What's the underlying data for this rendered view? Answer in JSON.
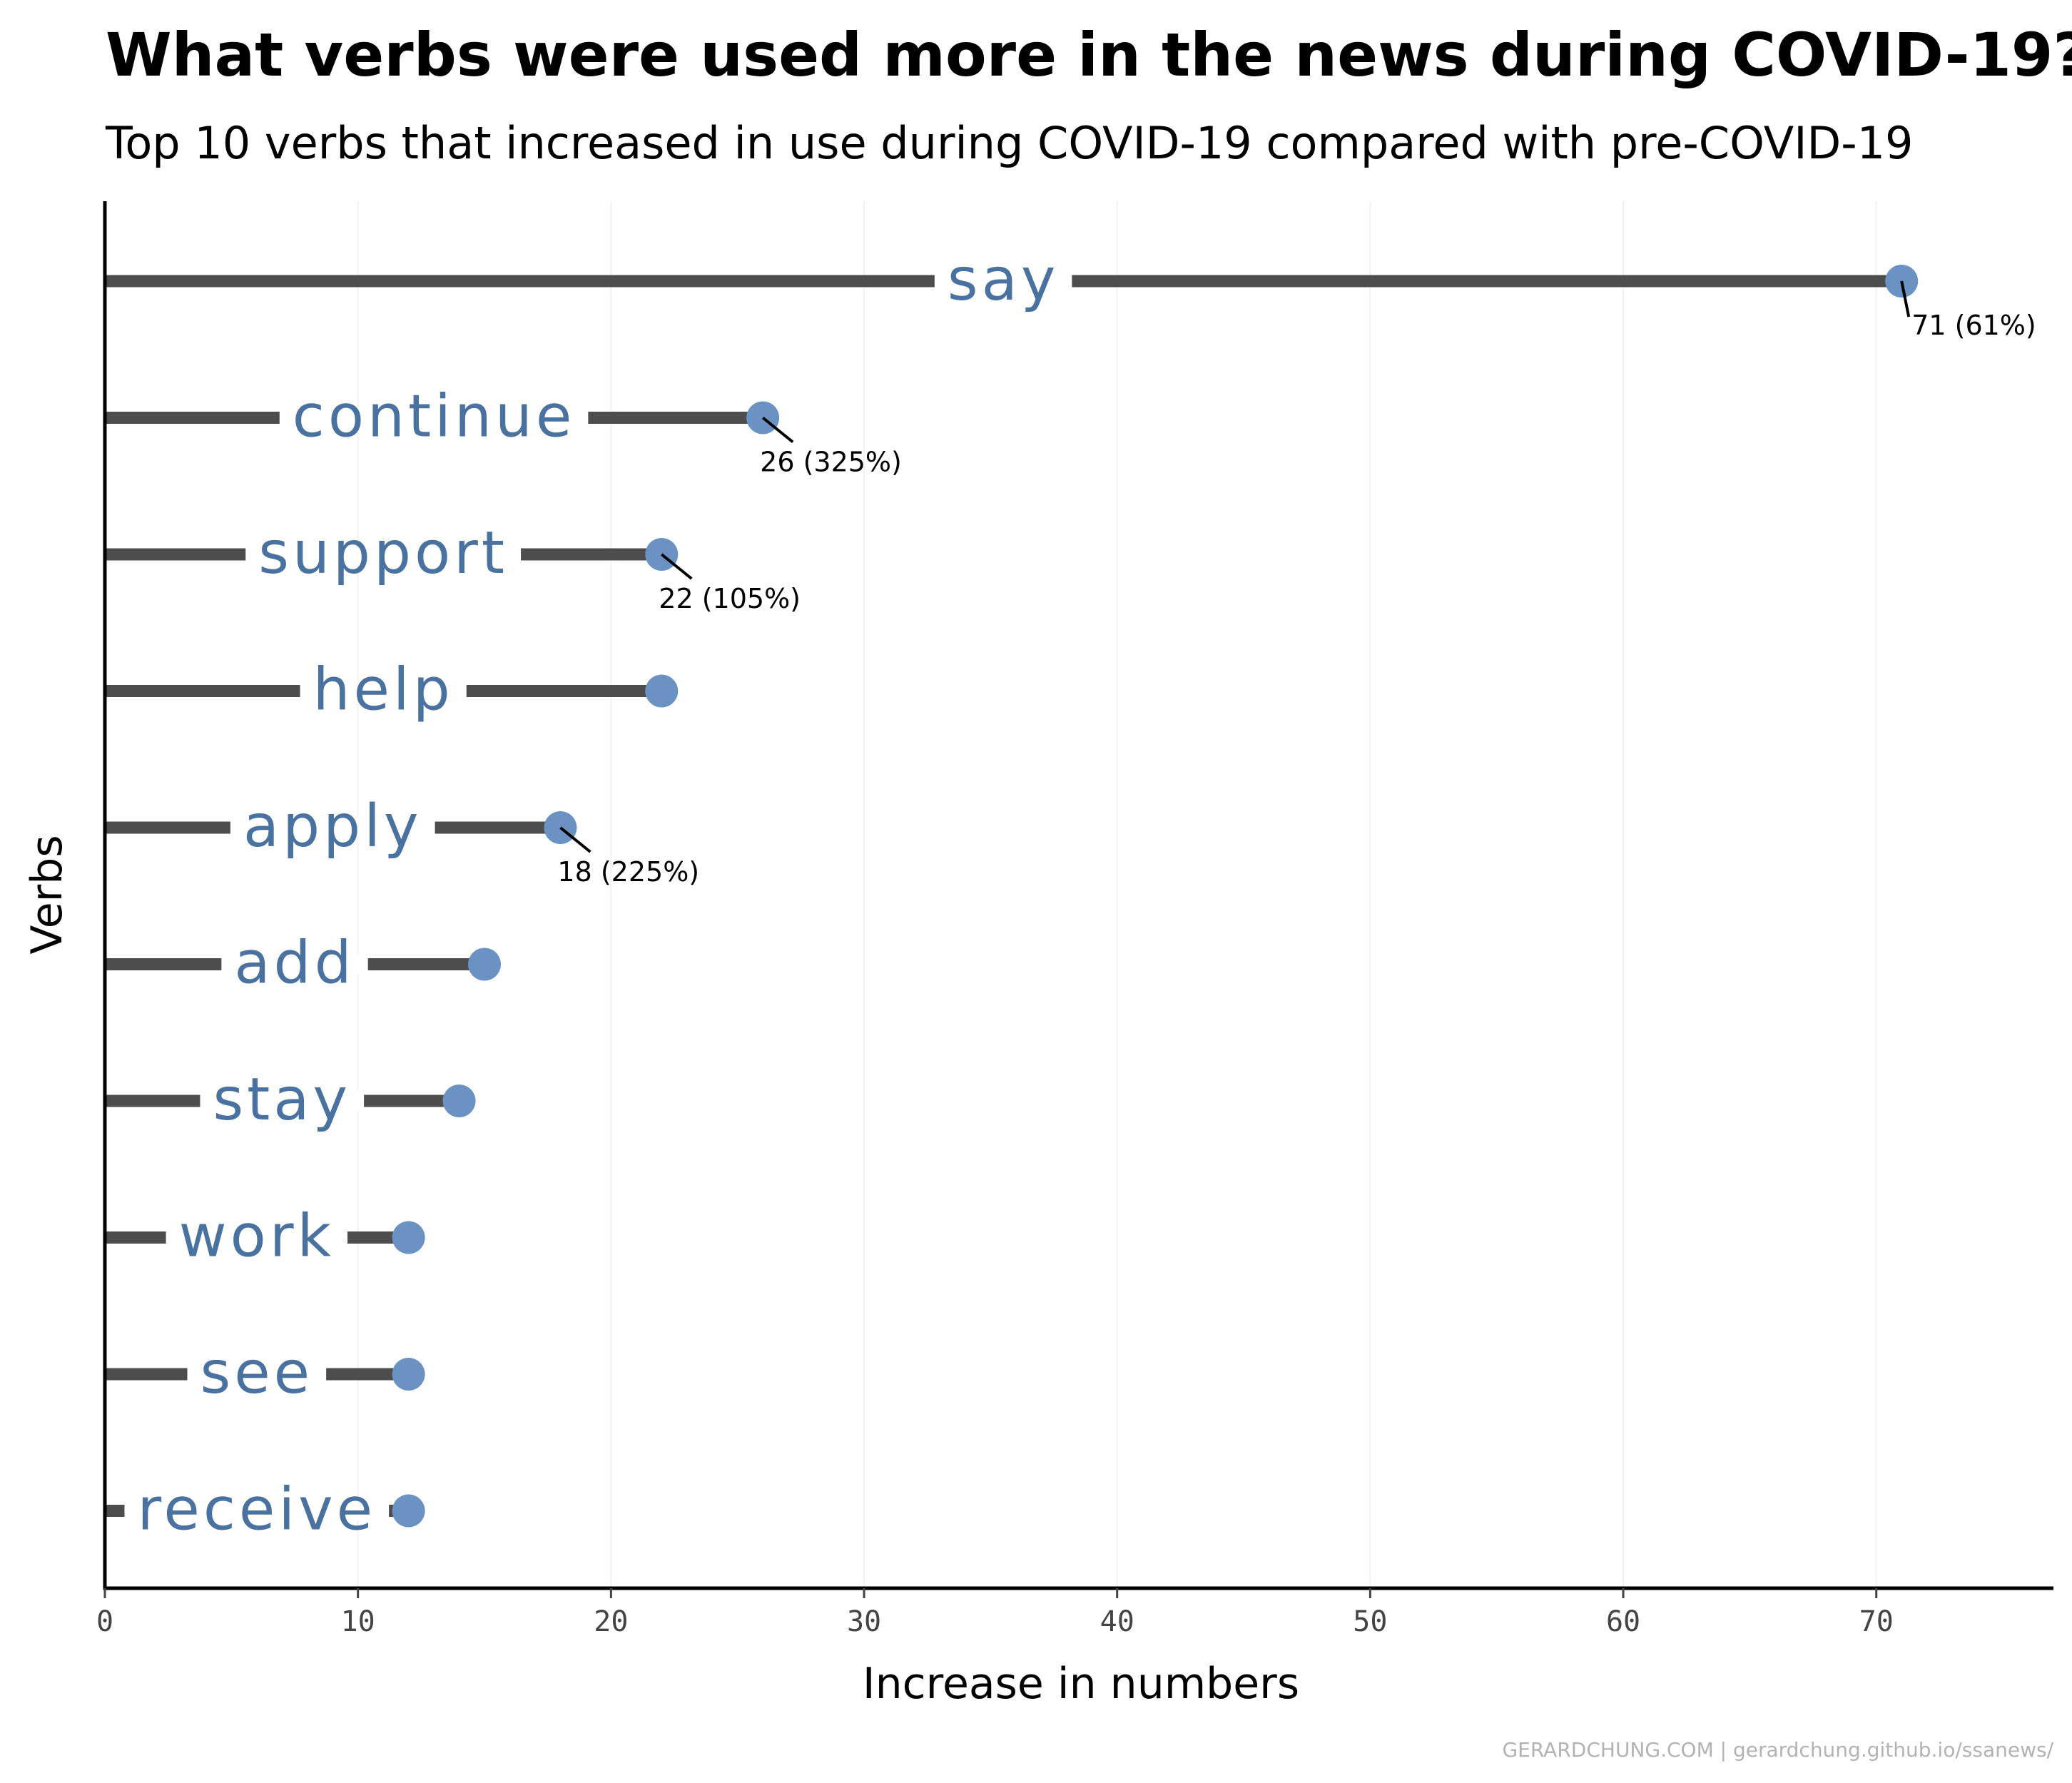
{
  "chart_data": {
    "type": "lollipop",
    "title": "What verbs were used more in the news during COVID-19?",
    "subtitle": "Top 10 verbs that increased in use during COVID-19 compared with pre-COVID-19",
    "xlabel": "Increase in numbers",
    "ylabel": "Verbs",
    "xlim": [
      0,
      77
    ],
    "xticks": [
      0,
      10,
      20,
      30,
      40,
      50,
      60,
      70
    ],
    "xtick_labels": [
      "0",
      "10",
      "20",
      "30",
      "40",
      "50",
      "60",
      "70"
    ],
    "grid": "vertical",
    "categories": [
      "say",
      "continue",
      "support",
      "help",
      "apply",
      "add",
      "stay",
      "work",
      "see",
      "receive"
    ],
    "values": [
      71,
      26,
      22,
      22,
      18,
      15,
      14,
      12,
      12,
      12
    ],
    "annotations": [
      {
        "category": "say",
        "value": 71,
        "label": "71 (61%)"
      },
      {
        "category": "continue",
        "value": 26,
        "label": "26 (325%)"
      },
      {
        "category": "support",
        "value": 22,
        "label": "22 (105%)"
      },
      {
        "category": "apply",
        "value": 18,
        "label": "18 (225%)"
      }
    ],
    "colors": {
      "stem": "#4d4d4d",
      "point": "#6a93c4",
      "label": "#4a72a0"
    }
  },
  "caption": "GERARDCHUNG.COM  |  gerardchung.github.io/ssanews/"
}
